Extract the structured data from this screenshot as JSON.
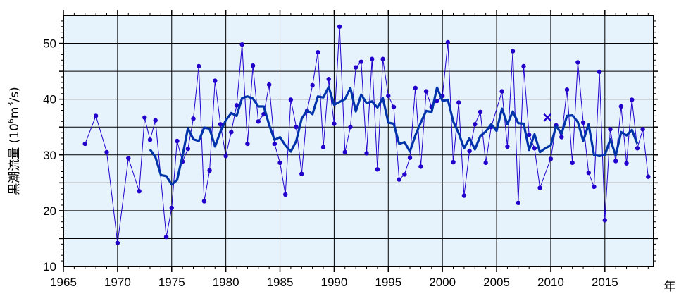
{
  "chart_data": {
    "type": "line",
    "ylabel": "黒潮流量 (10⁶m³/s)",
    "ylabel_parts": {
      "main": "黒潮流量 (10",
      "sup1": "6",
      "mid": "m",
      "sup2": "3",
      "tail": "/s)"
    },
    "xunit": "年",
    "xlim": [
      1965,
      2019.5
    ],
    "ylim": [
      10,
      55
    ],
    "xticks": [
      1965,
      1970,
      1975,
      1980,
      1985,
      1990,
      1995,
      2000,
      2005,
      2010,
      2015
    ],
    "yticks": [
      10,
      20,
      30,
      40,
      50
    ],
    "grid": true,
    "colors": {
      "background": "#e6f2fc",
      "raw_series": "#2200cc",
      "smoothed_series": "#0033aa",
      "marker_x": "#2200cc",
      "grid": "#000000"
    },
    "series": [
      {
        "style": "thin-line-with-dots",
        "points": [
          [
            1967.0,
            32.0
          ],
          [
            1968.0,
            37.0
          ],
          [
            1969.0,
            30.5
          ],
          [
            1970.0,
            14.2
          ],
          [
            1971.0,
            29.4
          ],
          [
            1972.0,
            23.5
          ],
          [
            1972.5,
            36.7
          ],
          [
            1973.0,
            32.7
          ],
          [
            1973.5,
            36.2
          ],
          [
            1974.5,
            15.3
          ],
          [
            1975.0,
            20.5
          ],
          [
            1975.5,
            32.5
          ],
          [
            1976.0,
            28.8
          ],
          [
            1976.5,
            31.1
          ],
          [
            1977.0,
            36.5
          ],
          [
            1977.5,
            45.9
          ],
          [
            1978.0,
            21.7
          ],
          [
            1978.5,
            27.2
          ],
          [
            1979.0,
            43.3
          ],
          [
            1979.5,
            35.5
          ],
          [
            1980.0,
            29.8
          ],
          [
            1980.5,
            34.1
          ],
          [
            1981.0,
            38.9
          ],
          [
            1981.5,
            49.8
          ],
          [
            1982.0,
            32.0
          ],
          [
            1982.5,
            46.0
          ],
          [
            1983.0,
            36.0
          ],
          [
            1983.5,
            37.3
          ],
          [
            1984.0,
            42.6
          ],
          [
            1984.5,
            32.0
          ],
          [
            1985.0,
            28.6
          ],
          [
            1985.5,
            22.9
          ],
          [
            1986.0,
            39.9
          ],
          [
            1986.5,
            35.0
          ],
          [
            1987.0,
            26.6
          ],
          [
            1987.5,
            37.9
          ],
          [
            1988.0,
            42.5
          ],
          [
            1988.5,
            48.4
          ],
          [
            1989.0,
            31.4
          ],
          [
            1989.5,
            43.6
          ],
          [
            1990.0,
            35.6
          ],
          [
            1990.5,
            53.0
          ],
          [
            1991.0,
            30.5
          ],
          [
            1991.5,
            35.0
          ],
          [
            1992.0,
            45.7
          ],
          [
            1992.5,
            46.7
          ],
          [
            1993.0,
            30.3
          ],
          [
            1993.5,
            47.2
          ],
          [
            1994.0,
            27.4
          ],
          [
            1994.5,
            47.2
          ],
          [
            1995.0,
            40.6
          ],
          [
            1995.5,
            38.6
          ],
          [
            1996.0,
            25.6
          ],
          [
            1996.5,
            26.5
          ],
          [
            1997.0,
            29.5
          ],
          [
            1997.5,
            42.0
          ],
          [
            1998.0,
            27.9
          ],
          [
            1998.5,
            41.4
          ],
          [
            1999.0,
            38.6
          ],
          [
            1999.5,
            39.7
          ],
          [
            2000.0,
            40.6
          ],
          [
            2000.5,
            50.2
          ],
          [
            2001.0,
            28.7
          ],
          [
            2001.5,
            39.4
          ],
          [
            2002.0,
            22.7
          ],
          [
            2002.5,
            30.7
          ],
          [
            2003.0,
            35.5
          ],
          [
            2003.5,
            37.7
          ],
          [
            2004.0,
            28.6
          ],
          [
            2004.5,
            35.0
          ],
          [
            2005.5,
            41.4
          ],
          [
            2006.0,
            31.5
          ],
          [
            2006.5,
            48.6
          ],
          [
            2007.0,
            21.4
          ],
          [
            2007.5,
            45.9
          ],
          [
            2008.0,
            33.6
          ],
          [
            2008.5,
            31.2
          ],
          [
            2009.0,
            24.1
          ],
          [
            2010.0,
            29.3
          ],
          [
            2010.5,
            35.3
          ],
          [
            2011.0,
            33.2
          ],
          [
            2011.5,
            41.7
          ],
          [
            2012.0,
            28.6
          ],
          [
            2012.5,
            46.6
          ],
          [
            2013.0,
            35.8
          ],
          [
            2013.5,
            26.8
          ],
          [
            2014.0,
            24.3
          ],
          [
            2014.5,
            44.9
          ],
          [
            2015.0,
            18.3
          ],
          [
            2015.5,
            34.6
          ],
          [
            2016.0,
            28.9
          ],
          [
            2016.5,
            38.7
          ],
          [
            2017.0,
            28.5
          ],
          [
            2017.5,
            39.9
          ],
          [
            2018.0,
            31.2
          ],
          [
            2018.5,
            34.6
          ],
          [
            2019.0,
            26.1
          ]
        ]
      },
      {
        "style": "thick-line",
        "points": [
          [
            1973.0,
            31.0
          ],
          [
            1973.5,
            29.6
          ],
          [
            1974.0,
            26.4
          ],
          [
            1974.5,
            26.2
          ],
          [
            1975.0,
            24.7
          ],
          [
            1975.5,
            25.5
          ],
          [
            1976.0,
            29.8
          ],
          [
            1976.5,
            34.8
          ],
          [
            1977.0,
            32.8
          ],
          [
            1977.5,
            32.5
          ],
          [
            1978.0,
            34.9
          ],
          [
            1978.5,
            34.7
          ],
          [
            1979.0,
            31.5
          ],
          [
            1979.5,
            34.2
          ],
          [
            1980.0,
            36.2
          ],
          [
            1980.5,
            37.5
          ],
          [
            1981.0,
            37.0
          ],
          [
            1981.5,
            40.2
          ],
          [
            1982.0,
            40.5
          ],
          [
            1982.5,
            40.1
          ],
          [
            1983.0,
            38.7
          ],
          [
            1983.5,
            38.7
          ],
          [
            1984.0,
            35.4
          ],
          [
            1984.5,
            32.7
          ],
          [
            1985.0,
            33.2
          ],
          [
            1985.5,
            31.7
          ],
          [
            1986.0,
            30.6
          ],
          [
            1986.5,
            32.5
          ],
          [
            1987.0,
            36.5
          ],
          [
            1987.5,
            38.0
          ],
          [
            1988.0,
            37.3
          ],
          [
            1988.5,
            40.5
          ],
          [
            1989.0,
            40.3
          ],
          [
            1989.5,
            42.2
          ],
          [
            1990.0,
            39.0
          ],
          [
            1990.5,
            39.5
          ],
          [
            1991.0,
            40.0
          ],
          [
            1991.5,
            42.0
          ],
          [
            1992.0,
            37.8
          ],
          [
            1992.5,
            40.8
          ],
          [
            1993.0,
            39.3
          ],
          [
            1993.5,
            39.6
          ],
          [
            1994.0,
            38.5
          ],
          [
            1994.5,
            40.2
          ],
          [
            1995.0,
            35.8
          ],
          [
            1995.5,
            35.6
          ],
          [
            1996.0,
            32.0
          ],
          [
            1996.5,
            32.3
          ],
          [
            1997.0,
            30.6
          ],
          [
            1997.5,
            33.5
          ],
          [
            1998.0,
            35.8
          ],
          [
            1998.5,
            37.9
          ],
          [
            1999.0,
            37.7
          ],
          [
            1999.5,
            42.1
          ],
          [
            2000.0,
            39.7
          ],
          [
            2000.5,
            39.9
          ],
          [
            2001.0,
            36.0
          ],
          [
            2001.5,
            33.9
          ],
          [
            2002.0,
            31.2
          ],
          [
            2002.5,
            33.0
          ],
          [
            2003.0,
            31.0
          ],
          [
            2003.5,
            33.4
          ],
          [
            2004.0,
            34.2
          ],
          [
            2004.5,
            35.5
          ],
          [
            2005.0,
            34.3
          ],
          [
            2005.5,
            38.3
          ],
          [
            2006.0,
            35.5
          ],
          [
            2006.5,
            37.8
          ],
          [
            2007.0,
            35.7
          ],
          [
            2007.5,
            35.6
          ],
          [
            2008.0,
            30.9
          ],
          [
            2008.5,
            33.7
          ],
          [
            2009.0,
            30.5
          ],
          [
            2009.5,
            31.2
          ],
          [
            2010.0,
            31.7
          ],
          [
            2010.5,
            35.2
          ],
          [
            2011.0,
            33.8
          ],
          [
            2011.5,
            37.0
          ],
          [
            2012.0,
            37.1
          ],
          [
            2012.5,
            35.9
          ],
          [
            2013.0,
            32.5
          ],
          [
            2013.5,
            35.5
          ],
          [
            2014.0,
            30.0
          ],
          [
            2014.5,
            29.8
          ],
          [
            2015.0,
            30.0
          ],
          [
            2015.5,
            32.8
          ],
          [
            2016.0,
            29.9
          ],
          [
            2016.5,
            34.1
          ],
          [
            2017.0,
            33.5
          ],
          [
            2017.5,
            34.5
          ],
          [
            2018.0,
            32.0
          ]
        ]
      }
    ],
    "marker_points": [
      [
        2009.7,
        36.7
      ]
    ]
  }
}
